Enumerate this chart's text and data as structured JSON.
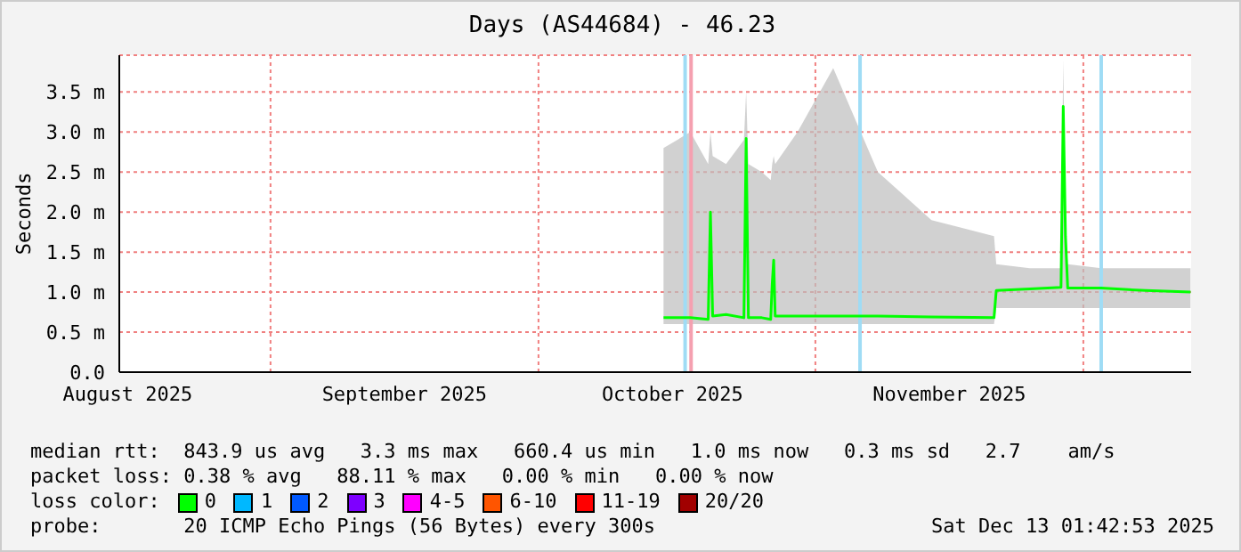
{
  "chart_data": {
    "type": "line",
    "title": "Days (AS44684) - 46.23",
    "ylabel": "Seconds",
    "xlim": [
      "2025-08-15T01:40",
      "2025-12-13T01:40"
    ],
    "xticks": [
      {
        "value": "2025-08-16",
        "label": "August 2025"
      },
      {
        "value": "2025-09-01",
        "label": null
      },
      {
        "value": "2025-09-16",
        "label": "September 2025"
      },
      {
        "value": "2025-10-01",
        "label": null
      },
      {
        "value": "2025-10-16",
        "label": "October 2025"
      },
      {
        "value": "2025-11-01",
        "label": null
      },
      {
        "value": "2025-11-16",
        "label": "November 2025"
      },
      {
        "value": "2025-12-01",
        "label": null
      }
    ],
    "ylim": [
      0,
      3.96
    ],
    "yticks": [
      {
        "value": 0,
        "label": "0.0"
      },
      {
        "value": 0.5,
        "label": "0.5 m"
      },
      {
        "value": 1,
        "label": "1.0 m"
      },
      {
        "value": 1.5,
        "label": "1.5 m"
      },
      {
        "value": 2,
        "label": "2.0 m"
      },
      {
        "value": 2.5,
        "label": "2.5 m"
      },
      {
        "value": 3,
        "label": "3.0 m"
      },
      {
        "value": 3.5,
        "label": "3.5 m"
      }
    ],
    "grid": true,
    "legend": "bottom",
    "legend_title": "loss color:",
    "marker": "none",
    "line_style": "solid",
    "series": [
      {
        "name": "0",
        "color": "#00ff00",
        "x": [
          "2025-10-15",
          "2025-10-18",
          "2025-10-20T00:00",
          "2025-10-20T06:00",
          "2025-10-20T12:00",
          "2025-10-22",
          "2025-10-24T00:00",
          "2025-10-24T06:00",
          "2025-10-24T12:00",
          "2025-10-26",
          "2025-10-27T00:00",
          "2025-10-27T04:00",
          "2025-10-27T08:00",
          "2025-10-27T12:00",
          "2025-10-30",
          "2025-11-03",
          "2025-11-08",
          "2025-11-14",
          "2025-11-21T00:00",
          "2025-11-21T06:00",
          "2025-11-25",
          "2025-11-28T12:00",
          "2025-11-28T18:00",
          "2025-11-29T00:00",
          "2025-11-29T06:00",
          "2025-12-03",
          "2025-12-08",
          "2025-12-13"
        ],
        "values": [
          0.68,
          0.68,
          0.66,
          2.0,
          0.7,
          0.72,
          0.68,
          2.92,
          0.68,
          0.68,
          0.66,
          1.1,
          1.4,
          0.7,
          0.7,
          0.7,
          0.7,
          0.69,
          0.68,
          1.02,
          1.04,
          1.06,
          3.32,
          1.7,
          1.05,
          1.05,
          1.02,
          1.0
        ],
        "lower": [
          0.6,
          0.6,
          0.6,
          0.6,
          0.6,
          0.6,
          0.6,
          0.6,
          0.6,
          0.6,
          0.6,
          0.6,
          0.6,
          0.6,
          0.6,
          0.6,
          0.6,
          0.6,
          0.6,
          0.8,
          0.8,
          0.8,
          0.8,
          0.8,
          0.8,
          0.8,
          0.8,
          0.8
        ],
        "upper": [
          2.8,
          3.0,
          2.6,
          3.0,
          2.7,
          2.6,
          2.9,
          3.5,
          2.6,
          2.5,
          2.4,
          2.6,
          2.7,
          2.6,
          3.0,
          3.8,
          2.5,
          1.9,
          1.7,
          1.35,
          1.3,
          1.3,
          3.9,
          1.9,
          1.35,
          1.3,
          1.3,
          1.3
        ]
      },
      {
        "name": "1",
        "color": "#00b8ff"
      },
      {
        "name": "2",
        "color": "#0059ff"
      },
      {
        "name": "3",
        "color": "#7e00ff"
      },
      {
        "name": "4-5",
        "color": "#ff00ff"
      },
      {
        "name": "6-10",
        "color": "#ff5500"
      },
      {
        "name": "11-19",
        "color": "#ff0000"
      },
      {
        "name": "20/20",
        "color": "#a10000"
      }
    ],
    "ref_lines": [
      {
        "axis": "x",
        "value": "2025-10-17T10:00",
        "color": "#9fdcf5"
      },
      {
        "axis": "x",
        "value": "2025-10-18T02:00",
        "color": "#f5a0b0"
      },
      {
        "axis": "x",
        "value": "2025-11-06",
        "color": "#9fdcf5"
      },
      {
        "axis": "x",
        "value": "2025-12-03",
        "color": "#9fdcf5"
      }
    ],
    "annotations": [
      "median rtt:  843.9 us avg   3.3 ms max   660.4 us min   1.0 ms now   0.3 ms sd   2.7    am/s",
      "packet loss: 0.38 % avg   88.11 % max   0.00 % min   0.00 % now",
      "probe:       20 ICMP Echo Pings (56 Bytes) every 300s",
      "Sat Dec 13 01:42:53 2025"
    ]
  }
}
